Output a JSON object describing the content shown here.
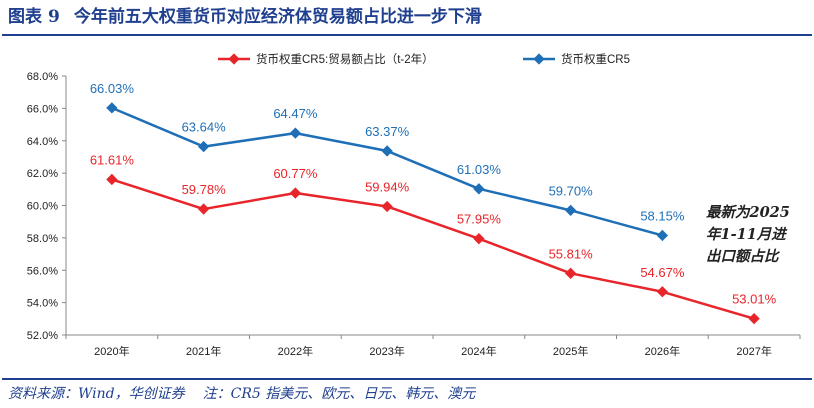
{
  "header": {
    "figure_label": "图表",
    "figure_number": "9",
    "title": "今年前五大权重货币对应经济体贸易额占比进一步下滑"
  },
  "annotation": {
    "lines": [
      "最新为2025",
      "年1-11月进",
      "出口额占比"
    ]
  },
  "footer": {
    "source": "资料来源：Wind，华创证券",
    "note": "注：CR5 指美元、欧元、日元、韩元、澳元"
  },
  "colors": {
    "red": "#e8252a",
    "blue": "#1f6fb7",
    "title": "#1f3f8f"
  },
  "chart_data": {
    "type": "line",
    "categories": [
      "2020年",
      "2021年",
      "2022年",
      "2023年",
      "2024年",
      "2025年",
      "2026年",
      "2027年"
    ],
    "y_ticks": [
      "52.0%",
      "54.0%",
      "56.0%",
      "58.0%",
      "60.0%",
      "62.0%",
      "64.0%",
      "66.0%",
      "68.0%"
    ],
    "ylim": [
      52,
      68
    ],
    "legend_position": "top",
    "grid": false,
    "series": [
      {
        "name": "货币权重CR5:贸易额占比（t-2年）",
        "color": "#e8252a",
        "values": [
          61.61,
          59.78,
          60.77,
          59.94,
          57.95,
          55.81,
          54.67,
          53.01
        ],
        "labels": [
          "61.61%",
          "59.78%",
          "60.77%",
          "59.94%",
          "57.95%",
          "55.81%",
          "54.67%",
          "53.01%"
        ]
      },
      {
        "name": "货币权重CR5",
        "color": "#1f6fb7",
        "values": [
          66.03,
          63.64,
          64.47,
          63.37,
          61.03,
          59.7,
          58.15,
          null
        ],
        "labels": [
          "66.03%",
          "63.64%",
          "64.47%",
          "63.37%",
          "61.03%",
          "59.70%",
          "58.15%",
          ""
        ]
      }
    ]
  }
}
